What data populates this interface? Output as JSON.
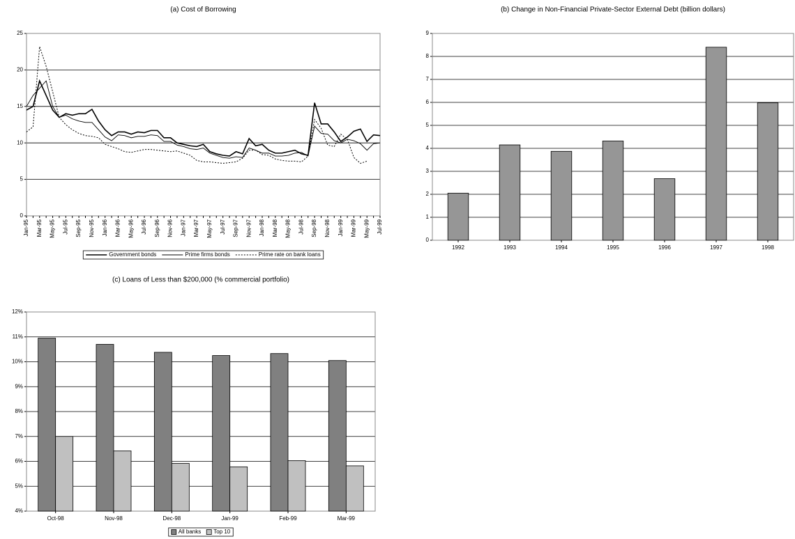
{
  "chart_data": [
    {
      "type": "line",
      "title": "(a) Cost of Borrowing",
      "categories": [
        "Jan-95",
        null,
        "Mar-95",
        null,
        "May-95",
        null,
        "Jul-95",
        null,
        "Sep-95",
        null,
        "Nov-95",
        null,
        "Jan-96",
        null,
        "Mar-96",
        null,
        "May-96",
        null,
        "Jul-96",
        null,
        "Sep-96",
        null,
        "Nov-96",
        null,
        "Jan-97",
        null,
        "Mar-97",
        null,
        "May-97",
        null,
        "Jul-97",
        null,
        "Sep-97",
        null,
        "Nov-97",
        null,
        "Jan-98",
        null,
        "Mar-98",
        null,
        "May-98",
        null,
        "Jul-98",
        null,
        "Sep-98",
        null,
        "Nov-98",
        null,
        "Jan-99",
        null,
        "Mar-99",
        null,
        "May-99",
        null,
        "Jul-99"
      ],
      "series": [
        {
          "name": "Government bonds",
          "color": "#000000",
          "style": "thick",
          "values": [
            14.5,
            15,
            18.5,
            16.5,
            14.5,
            13.5,
            14,
            13.8,
            14,
            14,
            14.6,
            13,
            11.8,
            11,
            11.5,
            11.5,
            11.2,
            11.5,
            11.4,
            11.7,
            11.7,
            10.7,
            10.7,
            10,
            9.8,
            9.6,
            9.5,
            9.8,
            8.8,
            8.5,
            8.3,
            8.2,
            8.8,
            8.5,
            10.6,
            9.6,
            9.8,
            9,
            8.6,
            8.6,
            8.8,
            9,
            8.5,
            8.3,
            15.5,
            12.6,
            12.6,
            11.5,
            10.2,
            10.8,
            11.6,
            11.9,
            10.2,
            11.1,
            11
          ]
        },
        {
          "name": "Prime firms bonds",
          "color": "#000000",
          "style": "thin",
          "values": [
            15,
            16.5,
            17.5,
            18.5,
            15,
            13.5,
            13.8,
            13.3,
            13,
            12.8,
            12.8,
            11.8,
            10.8,
            10.3,
            11.1,
            11,
            10.7,
            10.9,
            10.9,
            11.1,
            11,
            10.2,
            10.2,
            9.7,
            9.5,
            9.2,
            9.1,
            9.3,
            8.6,
            8.3,
            8,
            7.9,
            8.1,
            8,
            9.3,
            9,
            8.6,
            8.6,
            8.2,
            8.2,
            8.3,
            8.6,
            8.7,
            8.2,
            12.3,
            11.3,
            11.2,
            10.3,
            10,
            10.5,
            10.3,
            9.9,
            9,
            9.9,
            10
          ]
        },
        {
          "name": "Prime rate on bank loans",
          "color": "#000000",
          "style": "dotted",
          "values": [
            11.5,
            12.2,
            23.2,
            20.5,
            17,
            13.5,
            12.5,
            11.8,
            11.3,
            11,
            10.9,
            10.7,
            9.8,
            9.5,
            9.2,
            8.8,
            8.7,
            8.9,
            9.1,
            9.1,
            9,
            8.9,
            8.8,
            8.9,
            8.6,
            8.3,
            7.6,
            7.4,
            7.4,
            7.3,
            7.2,
            7.3,
            7.4,
            7.9,
            9,
            9,
            8.4,
            8.3,
            7.8,
            7.6,
            7.5,
            7.5,
            7.4,
            8.2,
            13.2,
            12,
            9.7,
            9.5,
            11.2,
            10.5,
            8,
            7.2,
            7.5,
            null,
            null
          ]
        }
      ],
      "ylim": [
        0,
        25
      ],
      "yticks": [
        0,
        5,
        10,
        15,
        20,
        25
      ],
      "grid": true,
      "legend": "bottom"
    },
    {
      "type": "bar",
      "title": "(b) Change in Non-Financial Private-Sector External Debt (billion dollars)",
      "categories": [
        "1992",
        "1993",
        "1994",
        "1995",
        "1996",
        "1997",
        "1998"
      ],
      "values": [
        2.05,
        4.15,
        3.87,
        4.32,
        2.68,
        8.4,
        5.98
      ],
      "color": "#969696",
      "ylim": [
        0,
        9
      ],
      "yticks": [
        0,
        1,
        2,
        3,
        4,
        5,
        6,
        7,
        8,
        9
      ],
      "grid": true
    },
    {
      "type": "bar",
      "title": "(c) Loans of Less than $200,000 (% commercial portfolio)",
      "categories": [
        "Oct-98",
        "Nov-98",
        "Dec-98",
        "Jan-99",
        "Feb-99",
        "Mar-99"
      ],
      "series": [
        {
          "name": "All banks",
          "color": "#808080",
          "values": [
            10.95,
            10.7,
            10.38,
            10.25,
            10.33,
            10.05
          ]
        },
        {
          "name": "Top 10",
          "color": "#c0c0c0",
          "values": [
            7,
            6.42,
            5.92,
            5.78,
            6.03,
            5.82
          ]
        }
      ],
      "ylim": [
        4,
        12
      ],
      "yticks": [
        {
          "value": 4,
          "label": "4%"
        },
        {
          "value": 5,
          "label": "5%"
        },
        {
          "value": 6,
          "label": "6%"
        },
        {
          "value": 7,
          "label": "7%"
        },
        {
          "value": 8,
          "label": "8%"
        },
        {
          "value": 9,
          "label": "9%"
        },
        {
          "value": 10,
          "label": "10%"
        },
        {
          "value": 11,
          "label": "11%"
        },
        {
          "value": 12,
          "label": "12%"
        }
      ],
      "grid": true,
      "legend": "bottom"
    }
  ]
}
